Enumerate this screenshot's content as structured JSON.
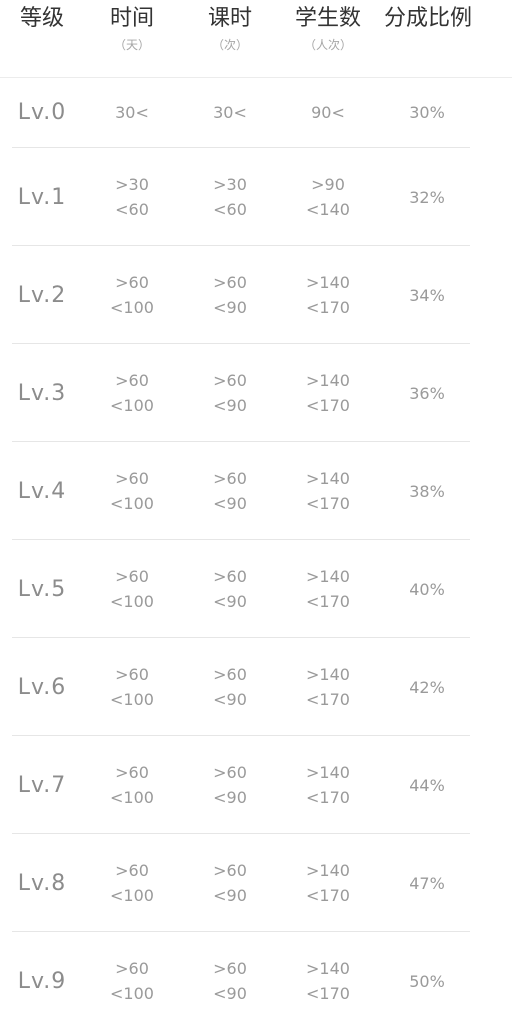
{
  "header": {
    "level": "等级",
    "time": "时间",
    "time_unit": "（天）",
    "lessons": "课时",
    "lessons_unit": "（次）",
    "students": "学生数",
    "students_unit": "（人次）",
    "ratio": "分成比例"
  },
  "rows": [
    {
      "level": "Lv.0",
      "time": [
        "30<"
      ],
      "lessons": [
        "30<"
      ],
      "students": [
        "90<"
      ],
      "ratio": "30%"
    },
    {
      "level": "Lv.1",
      "time": [
        ">30",
        "<60"
      ],
      "lessons": [
        ">30",
        "<60"
      ],
      "students": [
        ">90",
        "<140"
      ],
      "ratio": "32%"
    },
    {
      "level": "Lv.2",
      "time": [
        ">60",
        "<100"
      ],
      "lessons": [
        ">60",
        "<90"
      ],
      "students": [
        ">140",
        "<170"
      ],
      "ratio": "34%"
    },
    {
      "level": "Lv.3",
      "time": [
        ">60",
        "<100"
      ],
      "lessons": [
        ">60",
        "<90"
      ],
      "students": [
        ">140",
        "<170"
      ],
      "ratio": "36%"
    },
    {
      "level": "Lv.4",
      "time": [
        ">60",
        "<100"
      ],
      "lessons": [
        ">60",
        "<90"
      ],
      "students": [
        ">140",
        "<170"
      ],
      "ratio": "38%"
    },
    {
      "level": "Lv.5",
      "time": [
        ">60",
        "<100"
      ],
      "lessons": [
        ">60",
        "<90"
      ],
      "students": [
        ">140",
        "<170"
      ],
      "ratio": "40%"
    },
    {
      "level": "Lv.6",
      "time": [
        ">60",
        "<100"
      ],
      "lessons": [
        ">60",
        "<90"
      ],
      "students": [
        ">140",
        "<170"
      ],
      "ratio": "42%"
    },
    {
      "level": "Lv.7",
      "time": [
        ">60",
        "<100"
      ],
      "lessons": [
        ">60",
        "<90"
      ],
      "students": [
        ">140",
        "<170"
      ],
      "ratio": "44%"
    },
    {
      "level": "Lv.8",
      "time": [
        ">60",
        "<100"
      ],
      "lessons": [
        ">60",
        "<90"
      ],
      "students": [
        ">140",
        "<170"
      ],
      "ratio": "47%"
    },
    {
      "level": "Lv.9",
      "time": [
        ">60",
        "<100"
      ],
      "lessons": [
        ">60",
        "<90"
      ],
      "students": [
        ">140",
        "<170"
      ],
      "ratio": "50%"
    }
  ],
  "colors": {
    "header_text": "#333333",
    "body_text": "#9a9a9a",
    "divider": "#e6e6e6"
  }
}
